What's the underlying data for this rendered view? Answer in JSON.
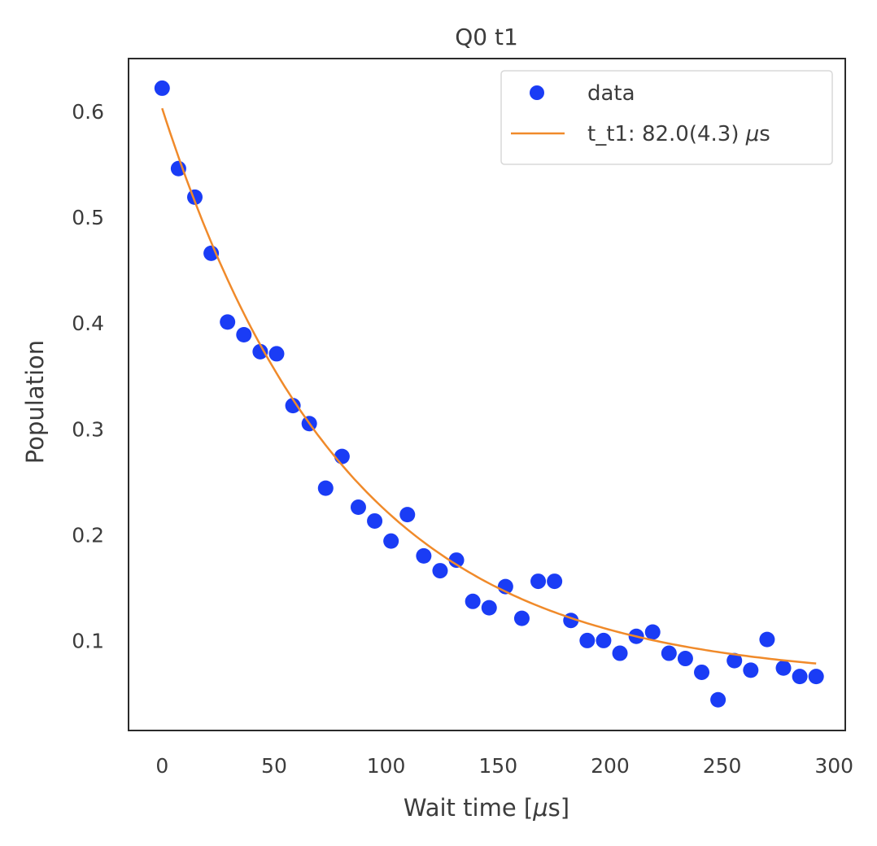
{
  "chart_data": {
    "type": "scatter",
    "title": "Q0 t1",
    "xlabel_prefix": "Wait time [",
    "xlabel_mu": "μ",
    "xlabel_suffix": "s]",
    "ylabel": "Population",
    "xlim": [
      -15,
      305
    ],
    "ylim": [
      0.015,
      0.65
    ],
    "x_ticks": [
      0,
      50,
      100,
      150,
      200,
      250,
      300
    ],
    "x_tick_labels": [
      "0",
      "50",
      "100",
      "150",
      "200",
      "250",
      "300"
    ],
    "y_ticks": [
      0.1,
      0.2,
      0.3,
      0.4,
      0.5,
      0.6
    ],
    "y_tick_labels": [
      "0.1",
      "0.2",
      "0.3",
      "0.4",
      "0.5",
      "0.6"
    ],
    "grid": false,
    "legend": {
      "placement": "top-right",
      "entries": [
        {
          "label": "data",
          "marker": "circle"
        },
        {
          "label_prefix": "t_t1: 82.0(4.3) ",
          "label_mu": "μ",
          "label_suffix": "s",
          "marker": "line"
        }
      ]
    },
    "series": [
      {
        "name": "data",
        "kind": "scatter",
        "color": "#1a3cf5",
        "x": [
          0,
          7.3,
          14.6,
          21.9,
          29.2,
          36.5,
          43.8,
          51.1,
          58.4,
          65.7,
          73.0,
          80.3,
          87.6,
          94.9,
          102.2,
          109.5,
          116.8,
          124.1,
          131.4,
          138.7,
          146.0,
          153.3,
          160.6,
          167.9,
          175.2,
          182.5,
          189.8,
          197.1,
          204.4,
          211.7,
          219.0,
          226.3,
          233.6,
          240.9,
          248.2,
          255.5,
          262.8,
          270.1,
          277.4,
          284.7,
          292.0
        ],
        "y": [
          0.622,
          0.546,
          0.519,
          0.466,
          0.401,
          0.389,
          0.373,
          0.371,
          0.322,
          0.305,
          0.244,
          0.274,
          0.226,
          0.213,
          0.194,
          0.219,
          0.18,
          0.166,
          0.176,
          0.137,
          0.131,
          0.151,
          0.121,
          0.156,
          0.156,
          0.119,
          0.1,
          0.1,
          0.088,
          0.104,
          0.108,
          0.088,
          0.083,
          0.07,
          0.044,
          0.081,
          0.072,
          0.101,
          0.074,
          0.066,
          0.066
        ]
      },
      {
        "name": "t_t1: 82.0(4.3) μs",
        "kind": "line",
        "color": "#f08a2a",
        "fit": {
          "model": "exponential",
          "amplitude": 0.54,
          "tau": 82.0,
          "offset": 0.063,
          "x_start": 0,
          "x_end": 292
        }
      }
    ]
  }
}
